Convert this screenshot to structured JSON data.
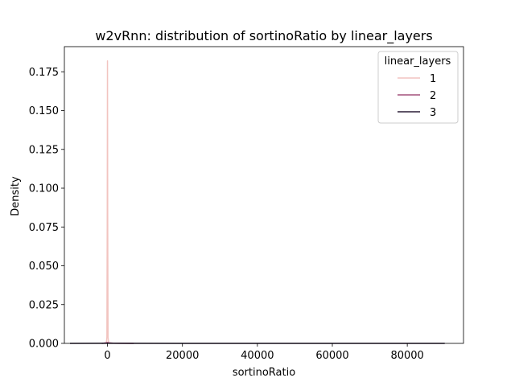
{
  "chart_data": {
    "type": "line",
    "title": "w2vRnn: distribution of sortinoRatio by linear_layers",
    "xlabel": "sortinoRatio",
    "ylabel": "Density",
    "xlim": [
      -11500,
      95000
    ],
    "ylim": [
      0,
      0.1912
    ],
    "xticks": [
      0,
      20000,
      40000,
      60000,
      80000
    ],
    "xtick_labels": [
      "0",
      "20000",
      "40000",
      "60000",
      "80000"
    ],
    "yticks": [
      0,
      0.025,
      0.05,
      0.075,
      0.1,
      0.125,
      0.15,
      0.175
    ],
    "ytick_labels": [
      "0.000",
      "0.025",
      "0.050",
      "0.075",
      "0.100",
      "0.125",
      "0.150",
      "0.175"
    ],
    "legend": {
      "title": "linear_layers",
      "position": "top-right"
    },
    "series": [
      {
        "name": "1",
        "color": "#f2c4c0",
        "x": [
          -300,
          -150,
          -60,
          0,
          60,
          150,
          300
        ],
        "y": [
          0,
          0.004,
          0.08,
          0.182,
          0.08,
          0.004,
          0
        ]
      },
      {
        "name": "2",
        "color": "#a3507b",
        "x": [
          -1500,
          -500,
          0,
          500,
          1500,
          3500,
          7000
        ],
        "y": [
          0,
          0.0003,
          0.0006,
          0.0003,
          0.00015,
          5e-05,
          0
        ]
      },
      {
        "name": "3",
        "color": "#2a1d36",
        "x": [
          -10000,
          0,
          20000,
          40000,
          60000,
          80000,
          90000
        ],
        "y": [
          2e-05,
          4e-05,
          2e-05,
          1e-05,
          1e-05,
          1e-05,
          1e-05
        ]
      }
    ]
  }
}
